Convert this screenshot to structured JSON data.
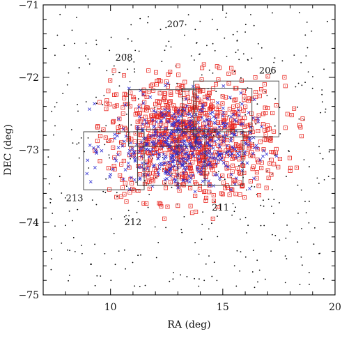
{
  "chart_data": {
    "type": "scatter",
    "title": "",
    "xlabel": "RA (deg)",
    "ylabel": "DEC (deg)",
    "xlim": [
      7,
      20
    ],
    "ylim": [
      -75,
      -71
    ],
    "x_ticks": [
      10,
      15,
      20
    ],
    "y_ticks": [
      -71,
      -72,
      -73,
      -74,
      -75
    ],
    "x_tick_labels": [
      "10",
      "15",
      "20"
    ],
    "y_tick_labels": [
      "−71",
      "−72",
      "−73",
      "−74",
      "−75"
    ],
    "grid": false,
    "legend": "none",
    "colors": {
      "background_stars": "#000000",
      "squares": "#e8251f",
      "crosses": "#2b2bd0",
      "fields": "#333333",
      "axes": "#000000"
    },
    "fields": [
      {
        "label": "206",
        "ra": [
          13.7,
          17.5
        ],
        "dec": [
          -72.82,
          -72.05
        ]
      },
      {
        "label": "207",
        "ra": [
          10.8,
          13.8
        ],
        "dec": [
          -72.95,
          -72.17
        ]
      },
      {
        "label": "208",
        "ra": [
          13.2,
          16.3
        ],
        "dec": [
          -72.75,
          -72.15
        ]
      },
      {
        "label": "211",
        "ra": [
          13.0,
          15.9
        ],
        "dec": [
          -73.49,
          -72.72
        ]
      },
      {
        "label": "212",
        "ra": [
          11.2,
          14.2
        ],
        "dec": [
          -73.49,
          -72.72
        ]
      },
      {
        "label": "213",
        "ra": [
          8.8,
          11.5
        ],
        "dec": [
          -73.55,
          -72.75
        ]
      }
    ],
    "field_labels": [
      {
        "text": "207",
        "ra": 12.9,
        "dec": -71.27
      },
      {
        "text": "208",
        "ra": 10.6,
        "dec": -71.73
      },
      {
        "text": "206",
        "ra": 17.0,
        "dec": -71.91
      },
      {
        "text": "213",
        "ra": 8.4,
        "dec": -73.67
      },
      {
        "text": "212",
        "ra": 11.0,
        "dec": -74.0
      },
      {
        "text": "211",
        "ra": 14.9,
        "dec": -73.8
      }
    ],
    "series": [
      {
        "marker": "dot",
        "color": "#000000",
        "region": {
          "ra": [
            7.2,
            19.8
          ],
          "dec": [
            -74.9,
            -71.1
          ]
        },
        "approx_count": 420
      },
      {
        "marker": "open-square",
        "color": "#e8251f",
        "center": {
          "ra": 13.5,
          "dec": -72.85
        },
        "approx_count": 880
      },
      {
        "marker": "cross",
        "color": "#2b2bd0",
        "center": {
          "ra": 13.2,
          "dec": -72.95
        },
        "approx_count": 520
      }
    ]
  }
}
